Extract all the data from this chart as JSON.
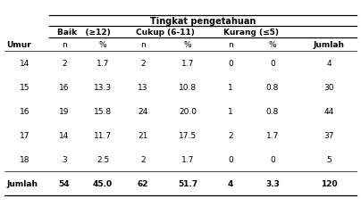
{
  "title": "Tingkat pengetahuan",
  "header1": [
    "Baik",
    "(≥12)",
    "Cukup (6-11)",
    "Kurang (≤5)"
  ],
  "sub_headers": [
    "n",
    "%",
    "n",
    "%",
    "n",
    "%"
  ],
  "row_label": "Umur",
  "last_col_header": "Jumlah",
  "rows": [
    [
      "14",
      "2",
      "1.7",
      "2",
      "1.7",
      "0",
      "0",
      "4"
    ],
    [
      "15",
      "16",
      "13.3",
      "13",
      "10.8",
      "1",
      "0.8",
      "30"
    ],
    [
      "16",
      "19",
      "15.8",
      "24",
      "20.0",
      "1",
      "0.8",
      "44"
    ],
    [
      "17",
      "14",
      "11.7",
      "21",
      "17.5",
      "2",
      "1.7",
      "37"
    ],
    [
      "18",
      "3",
      "2.5",
      "2",
      "1.7",
      "0",
      "0",
      "5"
    ]
  ],
  "footer_label": "Jumlah",
  "footer_data": [
    "54",
    "45.0",
    "62",
    "51.7",
    "4",
    "3.3",
    "120"
  ],
  "bg_color": "#ffffff",
  "text_color": "#000000",
  "line_color": "#000000",
  "fs": 6.5,
  "fs_bold": 6.5
}
